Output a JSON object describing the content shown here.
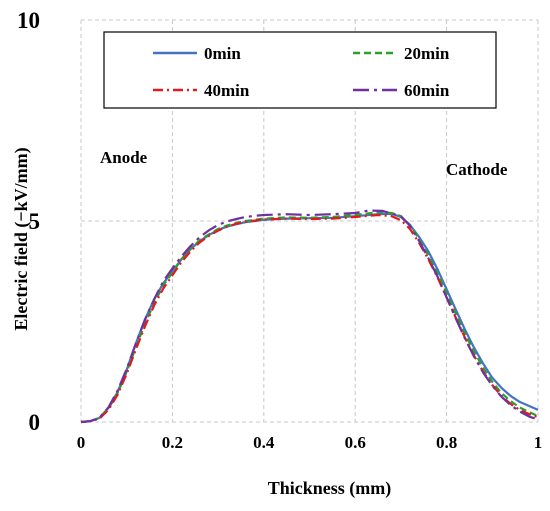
{
  "chart_data": {
    "type": "line",
    "title": "",
    "xlabel": "Thickness (mm)",
    "ylabel": "Electric field  (−kV/mm)",
    "xlim": [
      0,
      1
    ],
    "ylim": [
      0,
      10
    ],
    "x_ticks": [
      "0",
      "0.2",
      "0.4",
      "0.6",
      "0.8",
      "1"
    ],
    "y_ticks": [
      "0",
      "5",
      "10"
    ],
    "grid": "dashed, both axes",
    "legend_position": "top, inside plot, two columns",
    "annotations": [
      {
        "text": "Anode",
        "x": 0.06,
        "y": 6.6
      },
      {
        "text": "Cathode",
        "x": 0.95,
        "y": 6.3
      }
    ],
    "series": [
      {
        "name": "0min",
        "color": "#4472c4",
        "dash": "solid",
        "points": [
          [
            0,
            0
          ],
          [
            0.02,
            0.02
          ],
          [
            0.04,
            0.1
          ],
          [
            0.06,
            0.35
          ],
          [
            0.08,
            0.75
          ],
          [
            0.1,
            1.3
          ],
          [
            0.12,
            1.95
          ],
          [
            0.14,
            2.55
          ],
          [
            0.16,
            3.05
          ],
          [
            0.18,
            3.45
          ],
          [
            0.2,
            3.75
          ],
          [
            0.22,
            4.05
          ],
          [
            0.24,
            4.3
          ],
          [
            0.26,
            4.5
          ],
          [
            0.28,
            4.65
          ],
          [
            0.3,
            4.78
          ],
          [
            0.32,
            4.86
          ],
          [
            0.34,
            4.92
          ],
          [
            0.36,
            4.97
          ],
          [
            0.38,
            5.0
          ],
          [
            0.4,
            5.03
          ],
          [
            0.45,
            5.06
          ],
          [
            0.5,
            5.07
          ],
          [
            0.55,
            5.08
          ],
          [
            0.6,
            5.12
          ],
          [
            0.65,
            5.17
          ],
          [
            0.68,
            5.18
          ],
          [
            0.7,
            5.1
          ],
          [
            0.72,
            4.9
          ],
          [
            0.74,
            4.6
          ],
          [
            0.76,
            4.25
          ],
          [
            0.78,
            3.8
          ],
          [
            0.8,
            3.3
          ],
          [
            0.82,
            2.8
          ],
          [
            0.84,
            2.3
          ],
          [
            0.86,
            1.85
          ],
          [
            0.88,
            1.45
          ],
          [
            0.9,
            1.1
          ],
          [
            0.92,
            0.85
          ],
          [
            0.94,
            0.65
          ],
          [
            0.96,
            0.5
          ],
          [
            0.98,
            0.4
          ],
          [
            1.0,
            0.3
          ]
        ]
      },
      {
        "name": "20min",
        "color": "#2ca02c",
        "dash": "dashed",
        "points": [
          [
            0,
            0
          ],
          [
            0.02,
            0.02
          ],
          [
            0.04,
            0.1
          ],
          [
            0.06,
            0.33
          ],
          [
            0.08,
            0.72
          ],
          [
            0.1,
            1.25
          ],
          [
            0.12,
            1.85
          ],
          [
            0.14,
            2.45
          ],
          [
            0.16,
            2.95
          ],
          [
            0.18,
            3.4
          ],
          [
            0.2,
            3.72
          ],
          [
            0.22,
            4.05
          ],
          [
            0.24,
            4.32
          ],
          [
            0.26,
            4.52
          ],
          [
            0.28,
            4.67
          ],
          [
            0.3,
            4.8
          ],
          [
            0.32,
            4.89
          ],
          [
            0.34,
            4.95
          ],
          [
            0.36,
            5.0
          ],
          [
            0.38,
            5.03
          ],
          [
            0.4,
            5.06
          ],
          [
            0.45,
            5.09
          ],
          [
            0.5,
            5.08
          ],
          [
            0.55,
            5.1
          ],
          [
            0.6,
            5.15
          ],
          [
            0.65,
            5.22
          ],
          [
            0.68,
            5.2
          ],
          [
            0.7,
            5.12
          ],
          [
            0.72,
            4.9
          ],
          [
            0.74,
            4.55
          ],
          [
            0.76,
            4.15
          ],
          [
            0.78,
            3.7
          ],
          [
            0.8,
            3.2
          ],
          [
            0.82,
            2.7
          ],
          [
            0.84,
            2.2
          ],
          [
            0.86,
            1.75
          ],
          [
            0.88,
            1.35
          ],
          [
            0.9,
            1.0
          ],
          [
            0.92,
            0.72
          ],
          [
            0.94,
            0.52
          ],
          [
            0.96,
            0.36
          ],
          [
            0.98,
            0.25
          ],
          [
            1.0,
            0.15
          ]
        ]
      },
      {
        "name": "40min",
        "color": "#e31a1c",
        "dash": "dashdot",
        "points": [
          [
            0,
            0
          ],
          [
            0.02,
            0.02
          ],
          [
            0.04,
            0.08
          ],
          [
            0.06,
            0.3
          ],
          [
            0.08,
            0.68
          ],
          [
            0.1,
            1.2
          ],
          [
            0.12,
            1.8
          ],
          [
            0.14,
            2.38
          ],
          [
            0.16,
            2.9
          ],
          [
            0.18,
            3.32
          ],
          [
            0.2,
            3.65
          ],
          [
            0.22,
            3.98
          ],
          [
            0.24,
            4.25
          ],
          [
            0.26,
            4.47
          ],
          [
            0.28,
            4.63
          ],
          [
            0.3,
            4.76
          ],
          [
            0.32,
            4.86
          ],
          [
            0.34,
            4.93
          ],
          [
            0.36,
            4.98
          ],
          [
            0.38,
            5.01
          ],
          [
            0.4,
            5.04
          ],
          [
            0.45,
            5.06
          ],
          [
            0.5,
            5.05
          ],
          [
            0.55,
            5.06
          ],
          [
            0.6,
            5.1
          ],
          [
            0.65,
            5.15
          ],
          [
            0.68,
            5.12
          ],
          [
            0.7,
            5.02
          ],
          [
            0.72,
            4.8
          ],
          [
            0.74,
            4.45
          ],
          [
            0.76,
            4.05
          ],
          [
            0.78,
            3.6
          ],
          [
            0.8,
            3.1
          ],
          [
            0.82,
            2.6
          ],
          [
            0.84,
            2.1
          ],
          [
            0.86,
            1.65
          ],
          [
            0.88,
            1.25
          ],
          [
            0.9,
            0.92
          ],
          [
            0.92,
            0.65
          ],
          [
            0.94,
            0.45
          ],
          [
            0.96,
            0.3
          ],
          [
            0.98,
            0.2
          ],
          [
            1.0,
            0.12
          ]
        ]
      },
      {
        "name": "60min",
        "color": "#7030a0",
        "dash": "longdashdot",
        "points": [
          [
            0,
            0
          ],
          [
            0.02,
            0.02
          ],
          [
            0.04,
            0.1
          ],
          [
            0.06,
            0.36
          ],
          [
            0.08,
            0.78
          ],
          [
            0.1,
            1.32
          ],
          [
            0.12,
            1.95
          ],
          [
            0.14,
            2.55
          ],
          [
            0.16,
            3.05
          ],
          [
            0.18,
            3.5
          ],
          [
            0.2,
            3.82
          ],
          [
            0.22,
            4.12
          ],
          [
            0.24,
            4.38
          ],
          [
            0.26,
            4.6
          ],
          [
            0.28,
            4.77
          ],
          [
            0.3,
            4.9
          ],
          [
            0.32,
            4.99
          ],
          [
            0.34,
            5.05
          ],
          [
            0.36,
            5.1
          ],
          [
            0.38,
            5.13
          ],
          [
            0.4,
            5.15
          ],
          [
            0.45,
            5.17
          ],
          [
            0.5,
            5.15
          ],
          [
            0.55,
            5.17
          ],
          [
            0.6,
            5.2
          ],
          [
            0.63,
            5.26
          ],
          [
            0.66,
            5.25
          ],
          [
            0.7,
            5.12
          ],
          [
            0.72,
            4.88
          ],
          [
            0.74,
            4.5
          ],
          [
            0.76,
            4.08
          ],
          [
            0.78,
            3.62
          ],
          [
            0.8,
            3.1
          ],
          [
            0.82,
            2.58
          ],
          [
            0.84,
            2.08
          ],
          [
            0.86,
            1.63
          ],
          [
            0.88,
            1.23
          ],
          [
            0.9,
            0.9
          ],
          [
            0.92,
            0.63
          ],
          [
            0.94,
            0.42
          ],
          [
            0.96,
            0.26
          ],
          [
            0.98,
            0.14
          ],
          [
            1.0,
            0.06
          ]
        ]
      }
    ]
  }
}
